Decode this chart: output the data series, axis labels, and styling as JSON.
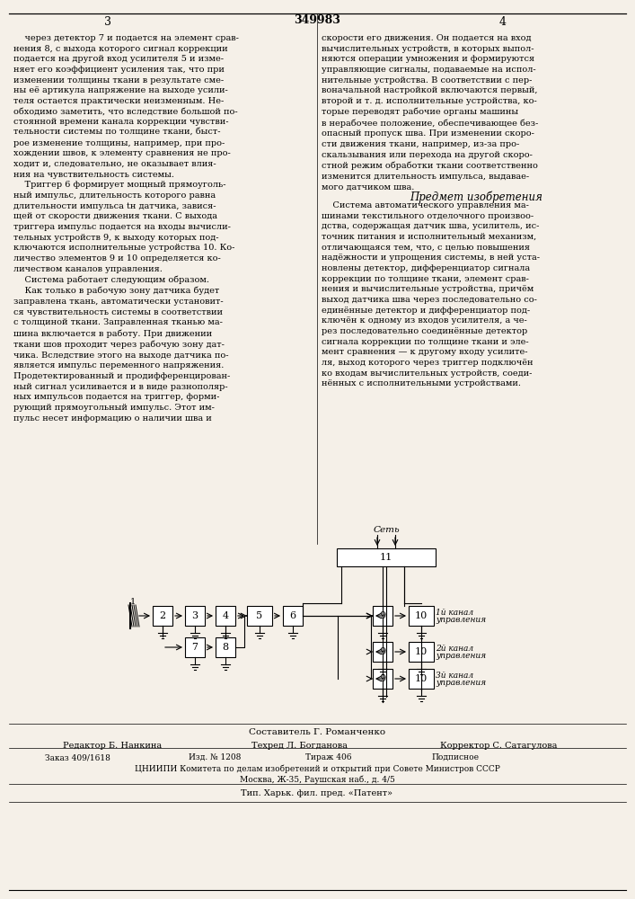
{
  "page_number_left": "3",
  "page_number_right": "4",
  "patent_number": "349983",
  "top_text_left": "через детектор 7 и подается на элемент сравнения 8, с выхода которого сигнал коррекции подается на другой вход усилителя 5 и изменяет его коэффициент усиления так, что при изменении толщины ткани в результате смены её артикула напряжение на выходе усилителя остается практически неизменным. Необходимо заметить, что вследствие большой постоянной времени канала коррекции чувствительности системы по толщине ткани, быстрое изменение толщины, например, при прохождении швов, к элементу сравнения не проходит и, следовательно, не оказывает влияния на чувствительность системы.\n    Триггер 6 формирует мощный прямоугольный импульс, длительность которого равна длительности импульса tн датчика, зависящей от скорости движения ткани. С выхода триггера импульс подается на входы вычислительных устройств 9, к выходу которых подключаются исполнительные устройства 10. Количество элементов 9 и 10 определяется количеством каналов управления.\n    Система работает следующим образом.\n    Как только в рабочую зону датчика будет заправлена ткань, автоматически установится чувствительность системы в соответствии с толщиной ткани. Заправленная тканью машина включается в работу. При движении ткани шов проходит через рабочую зону датчика. Вследствие этого на выходе датчика появляется импульс переменного напряжения. Продетектированный и продифференцированный сигнал усиливается и в виде разнополярных импульсов подается на триггер, формирующий прямоугольный импульс. Этот импульс несет информацию о наличии шва и",
  "top_text_right": "скорости его движения. Он подается на вход вычислительных устройств, в которых выполняются операции умножения и формируются управляющие сигналы, подаваемые на исполнительные устройства. В соответствии с первоначальной настройкой включаются первый, второй и т. д. исполнительные устройства, которые переводят рабочие органы машины в нерабочее положение, обеспечивающее безопасный пропуск шва. При изменении скорости движения ткани, например, из-за проскальзывания или перехода на другой скоростной режим обработки ткани соответственно изменится длительность импульса, выдаваемого датчиком шва.",
  "subject_heading": "Предмет изобретения",
  "subject_text": "    Система автоматического управления машинами текстильного отделочного производства, содержащая датчик шва, усилитель, источник питания и исполнительный механизм, отличающаяся тем, что, с целью повышения надёжности и упрощения системы, в ней установлены детектор, дифференциатор сигнала коррекции по толщине ткани, элемент сравнения и вычислительные устройства, причём выход датчика шва через последовательно соединённые детектор и дифференциатор подключён к одному из входов усилителя, а через последовательно соединённые детектор сигнала коррекции по толщине ткани и элемент сравнения — к другому входу усилителя, выход которого через триггер подключён ко входам вычислительных устройств, соединённых с исполнительными устройствами.",
  "footer_composer": "Составитель Г. Романченко",
  "footer_editor": "Редактор Б. Нанкина",
  "footer_tech": "Техред Л. Богданова",
  "footer_corrector": "Корректор С. Сатагулова",
  "footer_order": "Заказ 409/1618",
  "footer_pub": "Изд. № 1208",
  "footer_circulation": "Тираж 406",
  "footer_subscription": "Подписное",
  "footer_org": "ЦНИИПИ Комитета по делам изобретений и открытий при Совете Министров СССР",
  "footer_address": "Москва, Ж-35, Раушская наб., д. 4/5",
  "footer_printer": "Тип. Харьк. фил. пред. «Патент»",
  "bg_color": "#f5f0e8",
  "box_color": "#000000",
  "line_color": "#000000"
}
